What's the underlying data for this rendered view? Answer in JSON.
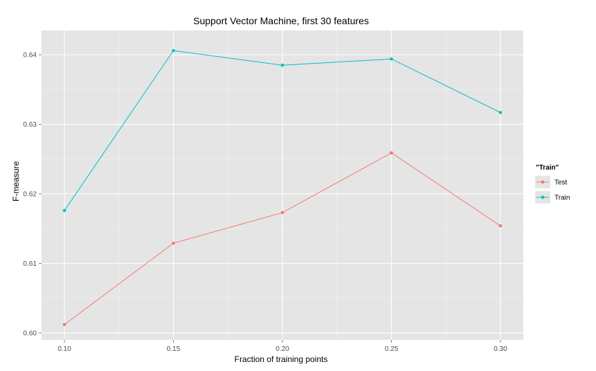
{
  "chart_data": {
    "type": "line",
    "title": "Support Vector Machine, first 30 features",
    "xlabel": "Fraction of training points",
    "ylabel": "F-measure",
    "x": [
      0.1,
      0.15,
      0.2,
      0.25,
      0.3
    ],
    "x_tick_labels": [
      "0.10",
      "0.15",
      "0.20",
      "0.25",
      "0.30"
    ],
    "y_ticks": [
      0.6,
      0.61,
      0.62,
      0.63,
      0.64
    ],
    "y_tick_labels": [
      "0.60",
      "0.61",
      "0.62",
      "0.63",
      "0.64"
    ],
    "xlim": [
      0.0895,
      0.3105
    ],
    "ylim": [
      0.599,
      0.6435
    ],
    "grid": true,
    "legend": {
      "title": "\"Train\"",
      "placement": "right"
    },
    "series": [
      {
        "name": "Test",
        "color": "#F8766D",
        "values": [
          0.6012,
          0.6129,
          0.6173,
          0.6259,
          0.6154
        ]
      },
      {
        "name": "Train",
        "color": "#00BFC4",
        "values": [
          0.6176,
          0.6406,
          0.6385,
          0.6394,
          0.6317
        ]
      }
    ],
    "panel_background": "#E5E5E5",
    "gridline_color": "#FFFFFF"
  }
}
